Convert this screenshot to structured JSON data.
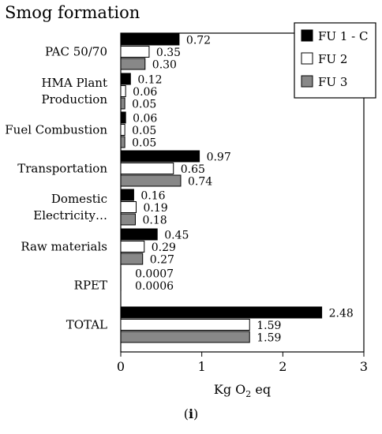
{
  "chart_data": {
    "type": "bar",
    "orientation": "horizontal",
    "title": "Smog formation",
    "xlabel": "Kg O2 eq",
    "xlim": [
      0,
      3
    ],
    "xticks": [
      "0",
      "1",
      "2",
      "3"
    ],
    "categories": [
      "PAC 50/70",
      "HMA Plant Production",
      "Fuel Combustion",
      "Transportation",
      "Domestic Electricity…",
      "Raw materials",
      "RPET",
      "TOTAL"
    ],
    "category_lines": [
      [
        "PAC 50/70"
      ],
      [
        "HMA Plant",
        "Production"
      ],
      [
        "Fuel Combustion"
      ],
      [
        "Transportation"
      ],
      [
        "Domestic",
        "Electricity…"
      ],
      [
        "Raw materials"
      ],
      [
        "RPET"
      ],
      [
        "TOTAL"
      ]
    ],
    "series": [
      {
        "name": "FU 1 - C",
        "color": "#000000",
        "values": [
          0.72,
          0.12,
          0.06,
          0.97,
          0.16,
          0.45,
          0.0007,
          2.48
        ],
        "labels": [
          "0.72",
          "0.12",
          "0.06",
          "0.97",
          "0.16",
          "0.45",
          "0.0007",
          "2.48"
        ]
      },
      {
        "name": "FU 2",
        "color": "#ffffff",
        "values": [
          0.35,
          0.06,
          0.05,
          0.65,
          0.19,
          0.29,
          0.0006,
          1.59
        ],
        "labels": [
          "0.35",
          "0.06",
          "0.05",
          "0.65",
          "0.19",
          "0.29",
          "0.0006",
          "1.59"
        ]
      },
      {
        "name": "FU 3",
        "color": "#888888",
        "values": [
          0.3,
          0.05,
          0.05,
          0.74,
          0.18,
          0.27,
          null,
          1.59
        ],
        "labels": [
          "0.30",
          "0.05",
          "0.05",
          "0.74",
          "0.18",
          "0.27",
          "",
          "1.59"
        ]
      }
    ],
    "legend_position": "top-right",
    "grid": false
  },
  "panel_label": "i"
}
